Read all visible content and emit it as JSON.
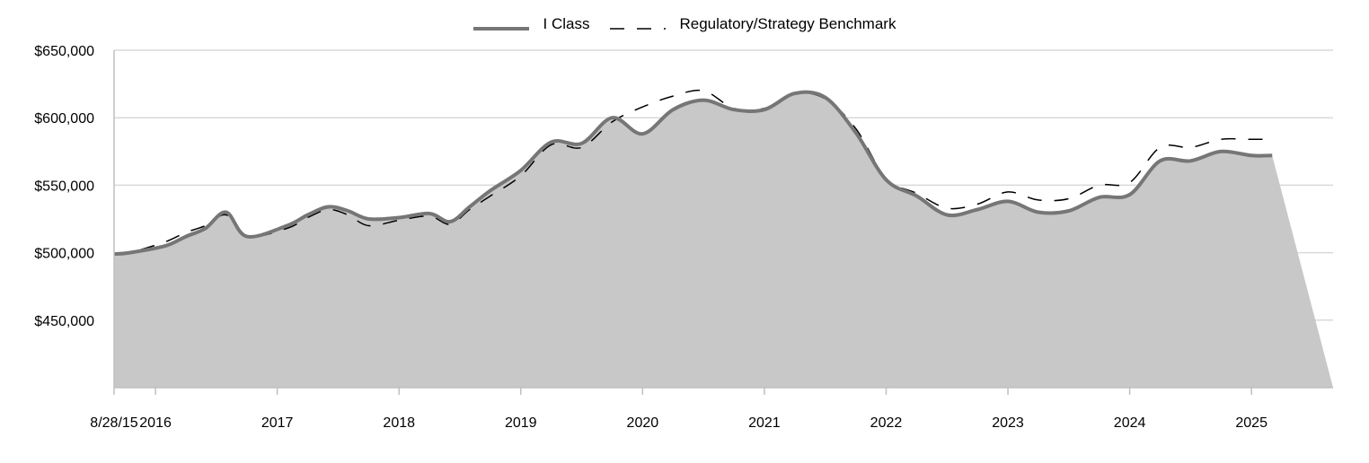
{
  "chart_data": {
    "type": "area",
    "title": "",
    "xlabel": "",
    "ylabel": "",
    "x_tick_labels": [
      "8/28/15",
      "2016",
      "2017",
      "2018",
      "2019",
      "2020",
      "2021",
      "2022",
      "2023",
      "2024",
      "2025"
    ],
    "x_ticks": [
      2015.66,
      2016,
      2017,
      2018,
      2019,
      2020,
      2021,
      2022,
      2023,
      2024,
      2025
    ],
    "xlim": [
      2015.66,
      2025.67
    ],
    "y_tick_labels": [
      "$450,000",
      "$500,000",
      "$550,000",
      "$600,000",
      "$650,000"
    ],
    "y_ticks": [
      450000,
      500000,
      550000,
      600000,
      650000
    ],
    "ylim": [
      400000,
      650000
    ],
    "grid": true,
    "legend_position": "top-center",
    "colors": {
      "area_fill": "#c8c8c8",
      "i_class_line": "#767676",
      "benchmark_line": "#000000",
      "grid": "#d9d9d9",
      "axis": "#bfbfbf"
    },
    "series": [
      {
        "name": "I Class",
        "style": "solid",
        "x": [
          2015.66,
          2015.79,
          2016.08,
          2016.25,
          2016.41,
          2016.58,
          2016.75,
          2017.08,
          2017.25,
          2017.42,
          2017.58,
          2017.75,
          2018.0,
          2018.25,
          2018.42,
          2018.58,
          2018.75,
          2019.0,
          2019.25,
          2019.5,
          2019.75,
          2020.0,
          2020.25,
          2020.5,
          2020.75,
          2021.0,
          2021.25,
          2021.5,
          2021.75,
          2022.0,
          2022.25,
          2022.5,
          2022.75,
          2023.0,
          2023.25,
          2023.5,
          2023.75,
          2024.0,
          2024.25,
          2024.5,
          2024.75,
          2025.0,
          2025.17
        ],
        "values": [
          499000,
          500000,
          505000,
          512000,
          518000,
          530000,
          512000,
          520000,
          528000,
          534000,
          531000,
          525000,
          526000,
          529000,
          523000,
          534000,
          546000,
          561000,
          582000,
          581000,
          600000,
          588000,
          606000,
          613000,
          606000,
          606000,
          618000,
          615000,
          589000,
          554000,
          542000,
          528000,
          532000,
          538000,
          530000,
          531000,
          541000,
          543000,
          568000,
          568000,
          575000,
          572000,
          572000
        ]
      },
      {
        "name": "Regulatory/Strategy Benchmark",
        "style": "dashed",
        "x": [
          2015.66,
          2015.79,
          2016.08,
          2016.25,
          2016.41,
          2016.58,
          2016.75,
          2017.08,
          2017.25,
          2017.42,
          2017.58,
          2017.75,
          2018.0,
          2018.25,
          2018.42,
          2018.58,
          2018.75,
          2019.0,
          2019.25,
          2019.5,
          2019.75,
          2020.0,
          2020.25,
          2020.5,
          2020.75,
          2021.0,
          2021.25,
          2021.5,
          2021.75,
          2022.0,
          2022.25,
          2022.5,
          2022.75,
          2023.0,
          2023.25,
          2023.5,
          2023.75,
          2024.0,
          2024.25,
          2024.5,
          2024.75,
          2025.0,
          2025.17
        ],
        "values": [
          499000,
          500000,
          508000,
          515000,
          520000,
          528000,
          512000,
          518000,
          526000,
          532000,
          528000,
          520000,
          524000,
          527000,
          521000,
          532000,
          542000,
          557000,
          580000,
          578000,
          597000,
          608000,
          616000,
          620000,
          607000,
          607000,
          618000,
          614000,
          592000,
          555000,
          544000,
          533000,
          536000,
          545000,
          539000,
          540000,
          550000,
          552000,
          578000,
          578000,
          584000,
          584000,
          584000
        ]
      }
    ]
  }
}
